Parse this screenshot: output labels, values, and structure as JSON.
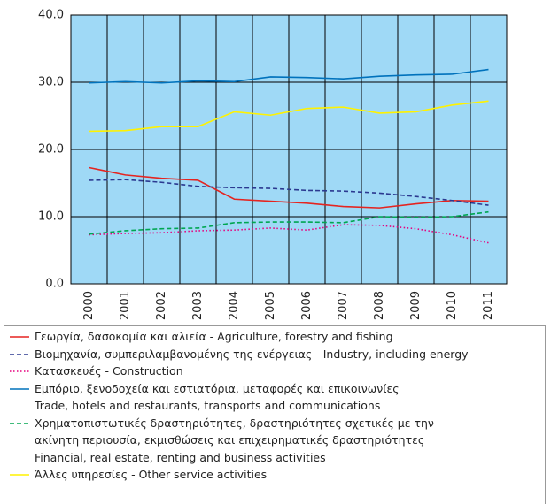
{
  "chart_data": {
    "type": "line",
    "categories": [
      "2000",
      "2001",
      "2002",
      "2003",
      "2004",
      "2005",
      "2006",
      "2007",
      "2008",
      "2009",
      "2010",
      "2011"
    ],
    "ylim": [
      0,
      40
    ],
    "yticks": [
      {
        "value": 0,
        "label": "0.0"
      },
      {
        "value": 10,
        "label": "10.0"
      },
      {
        "value": 20,
        "label": "20.0"
      },
      {
        "value": 30,
        "label": "30.0"
      },
      {
        "value": 40,
        "label": "40.0"
      }
    ],
    "grid": true,
    "background": "#9fd9f6",
    "series": [
      {
        "name": "Γεωργία, δασοκομία και αλιεία - Agriculture, forestry and fishing",
        "color": "#e52420",
        "style": "solid",
        "values": [
          17.3,
          16.2,
          15.7,
          15.4,
          12.6,
          12.3,
          12.0,
          11.5,
          11.3,
          11.9,
          12.4,
          12.3
        ]
      },
      {
        "name": "Βιομηχανία, συμπεριλαμβανομένης της ενέργειας - Industry, including energy",
        "color": "#2b3990",
        "style": "dashed",
        "values": [
          15.4,
          15.5,
          15.1,
          14.5,
          14.3,
          14.2,
          13.9,
          13.8,
          13.5,
          13.0,
          12.4,
          11.7
        ]
      },
      {
        "name": "Κατασκευές - Construction",
        "color": "#e6007e",
        "style": "dotted",
        "values": [
          7.3,
          7.5,
          7.6,
          7.9,
          8.0,
          8.3,
          8.0,
          8.8,
          8.7,
          8.2,
          7.3,
          6.1
        ]
      },
      {
        "name": "Εμπόριο, ξενοδοχεία και εστιατόρια, μεταφορές και επικοινωνίες\nTrade, hotels and restaurants, transports and communications",
        "color": "#0072bc",
        "style": "solid",
        "values": [
          29.9,
          30.1,
          29.9,
          30.2,
          30.1,
          30.8,
          30.7,
          30.5,
          30.9,
          31.1,
          31.2,
          31.9
        ]
      },
      {
        "name": "Χρηματοπιστωτικές δραστηριότητες, δραστηριότητες σχετικές με την\nακίνητη περιουσία, εκμισθώσεις και επιχειρηματικές δραστηριότητες\nFinancial, real estate, renting and business activities",
        "color": "#00a651",
        "style": "dashed",
        "values": [
          7.4,
          7.9,
          8.2,
          8.3,
          9.1,
          9.2,
          9.2,
          9.1,
          10.0,
          9.9,
          10.0,
          10.7
        ]
      },
      {
        "name": "Άλλες υπηρεσίες - Other service activities",
        "color": "#fff200",
        "style": "solid",
        "values": [
          22.7,
          22.8,
          23.4,
          23.4,
          25.6,
          25.1,
          26.1,
          26.3,
          25.4,
          25.6,
          26.6,
          27.2
        ]
      }
    ]
  }
}
